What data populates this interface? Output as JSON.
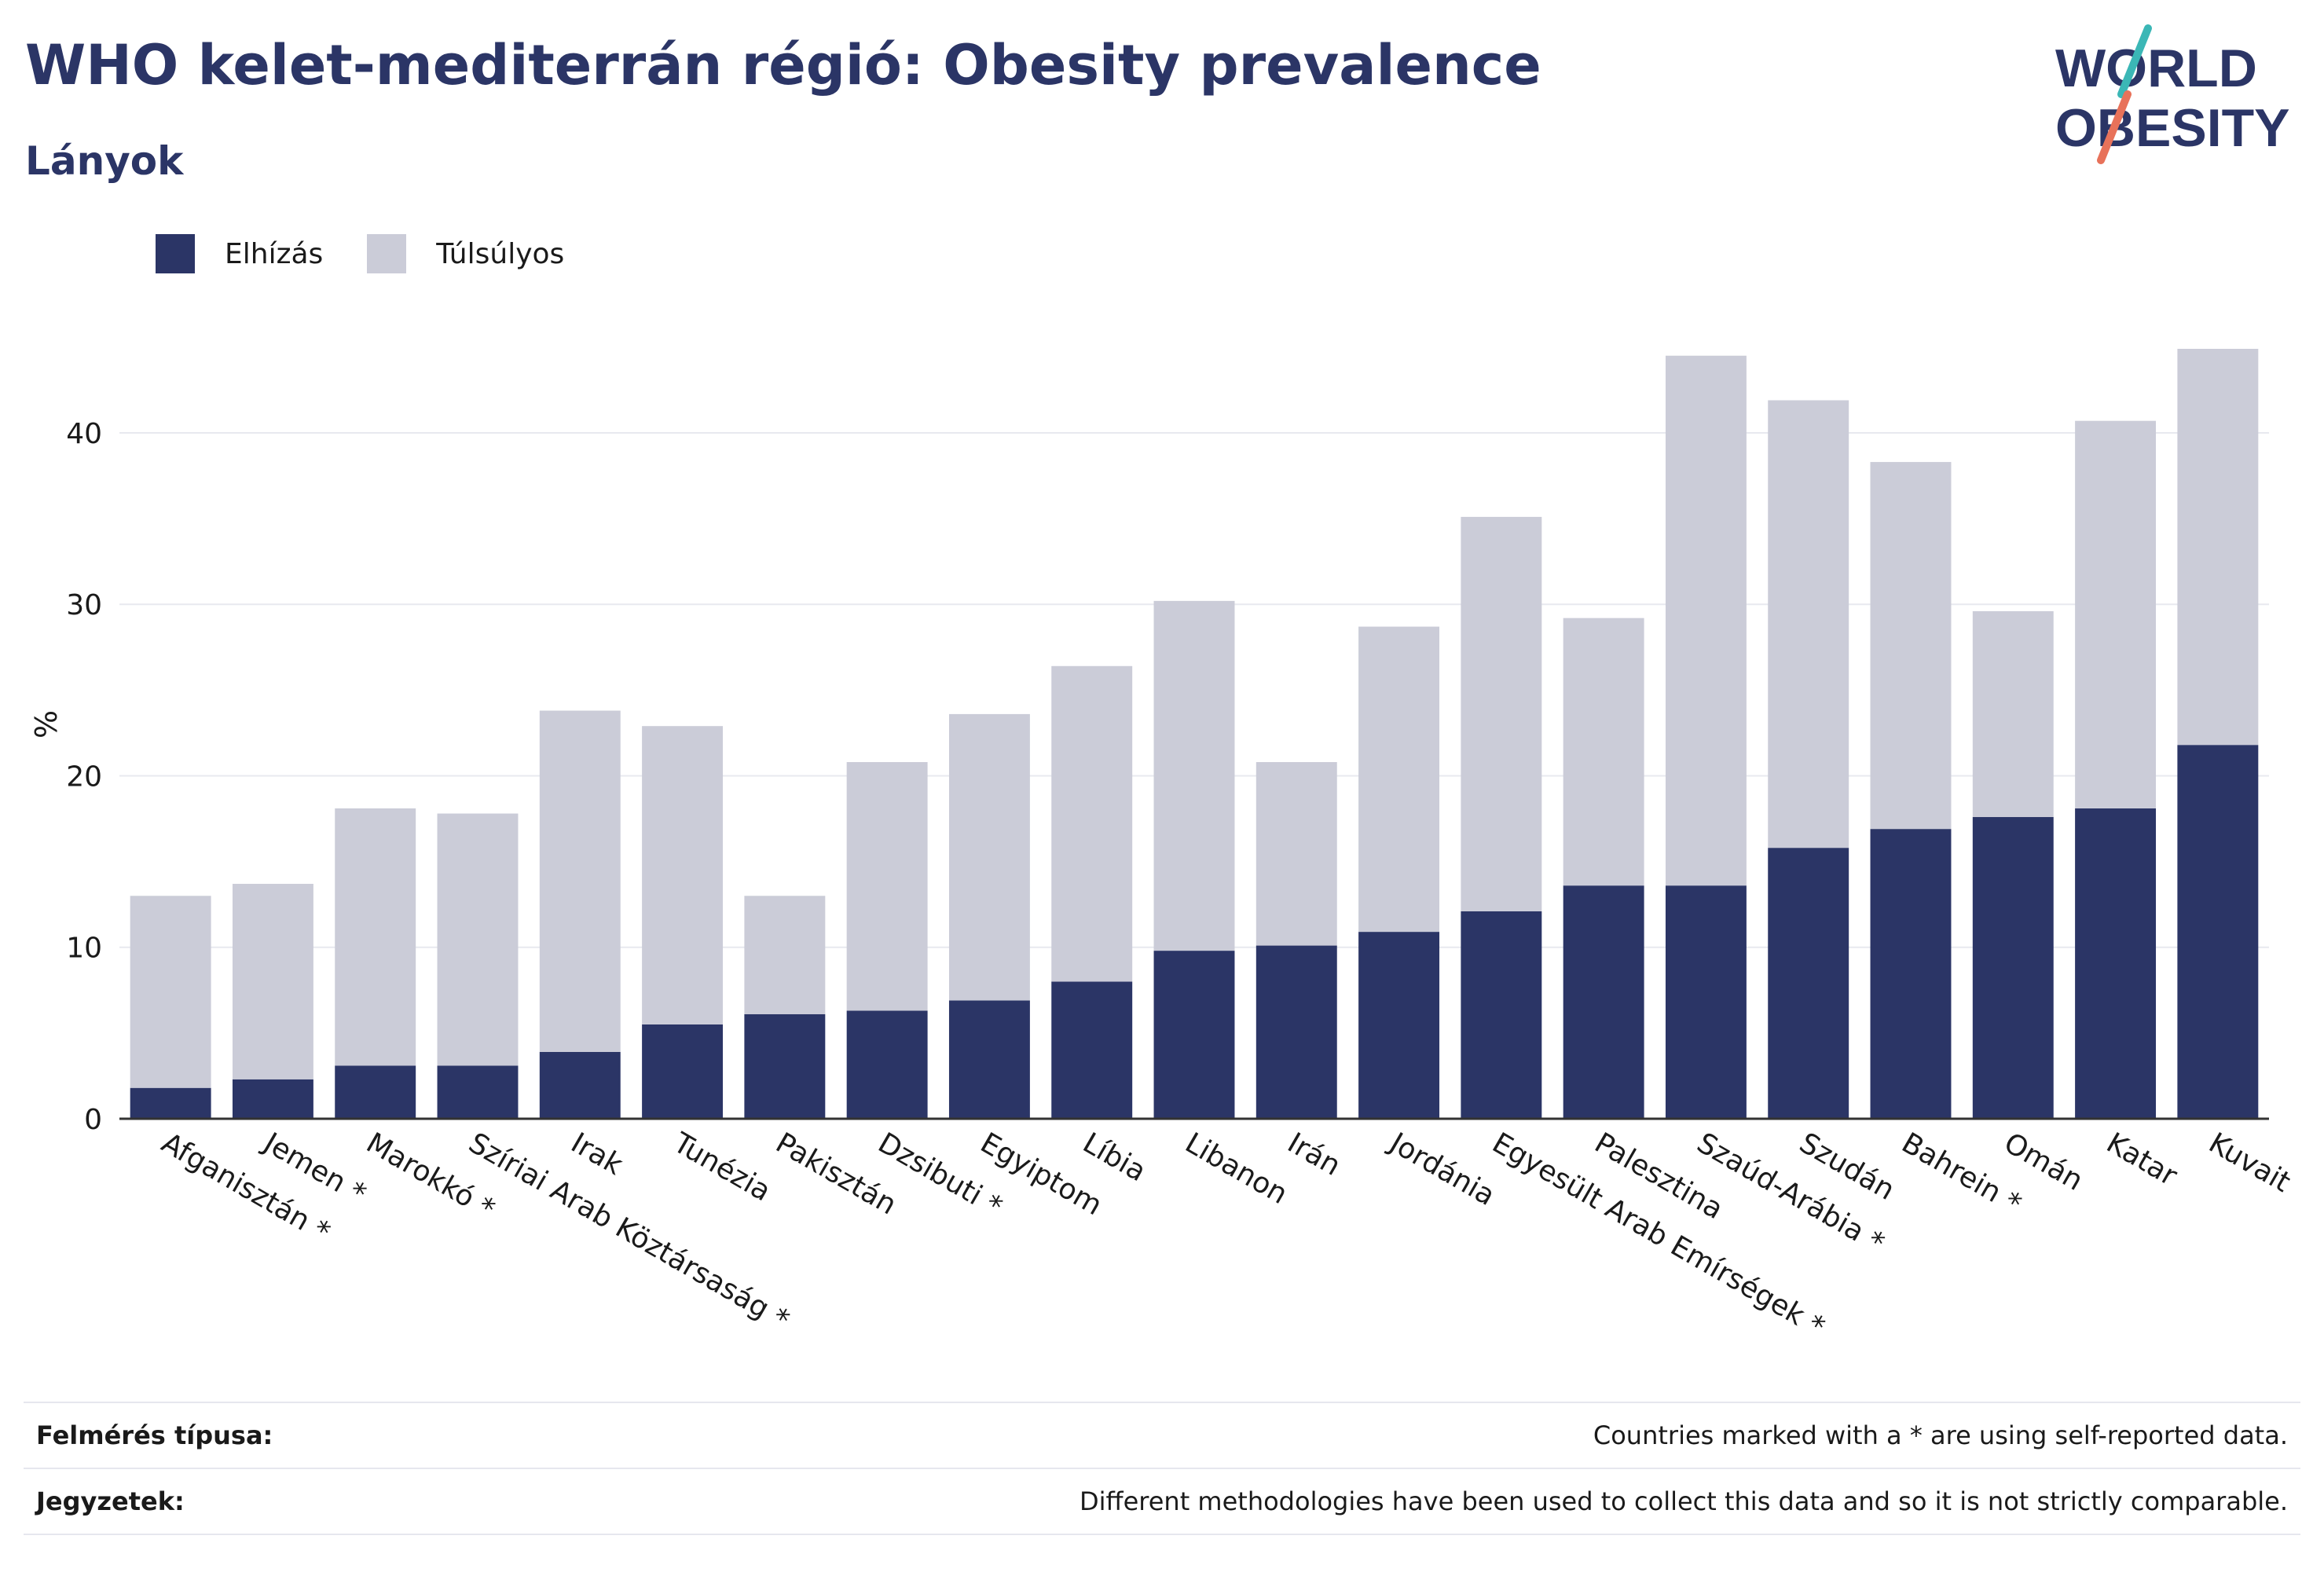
{
  "header": {
    "title": "WHO kelet-mediterrán régió: Obesity prevalence",
    "subtitle": "Lányok"
  },
  "logo": {
    "line1": "WORLD",
    "line2": "OBESITY"
  },
  "legend": {
    "obesity_label": "Elhízás",
    "overweight_label": "Túlsúlyos"
  },
  "colors": {
    "obesity": "#2b3566",
    "overweight": "#cbccd8",
    "grid": "#e8e9ef",
    "axis": "#333333",
    "logo_teal": "#3bb7b6",
    "logo_coral": "#e8725a"
  },
  "chart_data": {
    "type": "bar",
    "stacked": true,
    "ylabel": "%",
    "ylim": [
      0,
      46
    ],
    "yticks": [
      0,
      10,
      20,
      30,
      40
    ],
    "grid": true,
    "legend_position": "top-left",
    "categories": [
      "Afganisztán *",
      "Jemen *",
      "Marokkó *",
      "Szíriai Arab Köztársaság *",
      "Irak",
      "Tunézia",
      "Pakisztán",
      "Dzsibuti *",
      "Egyiptom",
      "Líbia",
      "Libanon",
      "Irán",
      "Jordánia",
      "Egyesült Arab Emírségek *",
      "Palesztina",
      "Szaúd-Arábia *",
      "Szudán",
      "Bahrein *",
      "Omán",
      "Katar",
      "Kuvait"
    ],
    "series": [
      {
        "name": "Elhízás",
        "values": [
          1.8,
          2.3,
          3.1,
          3.1,
          3.9,
          5.5,
          6.1,
          6.3,
          6.9,
          8.0,
          9.8,
          10.1,
          10.9,
          12.1,
          13.6,
          13.6,
          15.8,
          16.9,
          17.6,
          18.1,
          21.8
        ]
      },
      {
        "name": "Túlsúlyos",
        "values": [
          11.2,
          11.4,
          15.0,
          14.7,
          19.9,
          17.4,
          6.9,
          14.5,
          16.7,
          18.4,
          20.4,
          10.7,
          17.8,
          23.0,
          15.6,
          30.9,
          26.1,
          21.4,
          12.0,
          22.6,
          23.1
        ]
      }
    ]
  },
  "footer": {
    "survey_key": "Felmérés típusa:",
    "survey_value": "Countries marked with a * are using self-reported data.",
    "notes_key": "Jegyzetek:",
    "notes_value": "Different methodologies have been used to collect this data and so it is not strictly comparable."
  }
}
